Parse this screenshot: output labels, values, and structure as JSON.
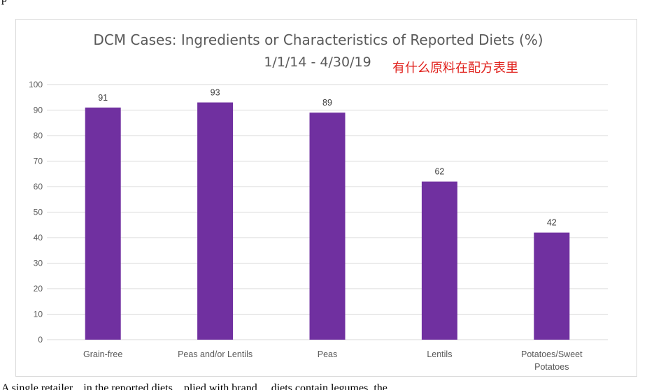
{
  "page": {
    "top_fragment": "p",
    "bottom_fragment": "A single retailer... in the reported diets ...plied with brand ... diets contain legumes, the"
  },
  "annotation": {
    "text": "有什么原料在配方表里",
    "color": "#e0201b"
  },
  "chart_data": {
    "type": "bar",
    "title": "DCM Cases: Ingredients or Characteristics of Reported Diets (%)",
    "subtitle": "1/1/14 - 4/30/19",
    "xlabel": "",
    "ylabel": "",
    "categories": [
      [
        "Grain-free"
      ],
      [
        "Peas and/or Lentils"
      ],
      [
        "Peas"
      ],
      [
        "Lentils"
      ],
      [
        "Potatoes/Sweet",
        "Potatoes"
      ]
    ],
    "values": [
      91,
      93,
      89,
      62,
      42
    ],
    "ylim": [
      0,
      100
    ],
    "yticks": [
      0,
      10,
      20,
      30,
      40,
      50,
      60,
      70,
      80,
      90,
      100
    ],
    "grid": true,
    "data_labels": true,
    "bar_color": "#7030a0",
    "gridline_color": "#d9d9d9"
  }
}
